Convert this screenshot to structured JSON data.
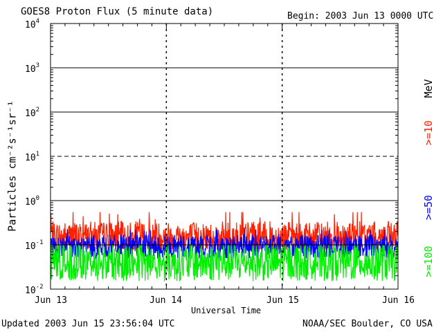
{
  "chart_data": {
    "type": "line",
    "title": "GOES8 Proton Flux (5 minute data)",
    "begin_label": "Begin: 2003 Jun 13 0000 UTC",
    "xlabel": "Universal Time",
    "ylabel": "Particles cm⁻²s⁻¹sr⁻¹",
    "yscale": "log",
    "ylim": [
      0.01,
      10000
    ],
    "xlim_days": [
      0,
      3
    ],
    "x_ticks": [
      "Jun 13",
      "Jun 14",
      "Jun 15",
      "Jun 16"
    ],
    "y_ticks": [
      {
        "value": 0.01,
        "base": "10",
        "exp": "-2"
      },
      {
        "value": 0.1,
        "base": "10",
        "exp": "-1"
      },
      {
        "value": 1,
        "base": "10",
        "exp": "0"
      },
      {
        "value": 10,
        "base": "10",
        "exp": "1"
      },
      {
        "value": 100,
        "base": "10",
        "exp": "2"
      },
      {
        "value": 1000,
        "base": "10",
        "exp": "3"
      },
      {
        "value": 10000,
        "base": "10",
        "exp": "4"
      }
    ],
    "threshold_lines": [
      {
        "value": 10,
        "style": "dashed"
      }
    ],
    "unit_label": "MeV",
    "series": [
      {
        "name": ">=10",
        "color": "#ff2000",
        "typical": 0.15,
        "low": 0.08,
        "high": 0.55
      },
      {
        "name": ">=50",
        "color": "#0000ff",
        "typical": 0.09,
        "low": 0.05,
        "high": 0.22
      },
      {
        "name": ">=100",
        "color": "#00ee00",
        "typical": 0.04,
        "low": 0.01,
        "high": 0.1
      }
    ]
  },
  "footer": {
    "updated": "Updated 2003 Jun 15 23:56:04 UTC",
    "source": "NOAA/SEC Boulder, CO USA"
  }
}
